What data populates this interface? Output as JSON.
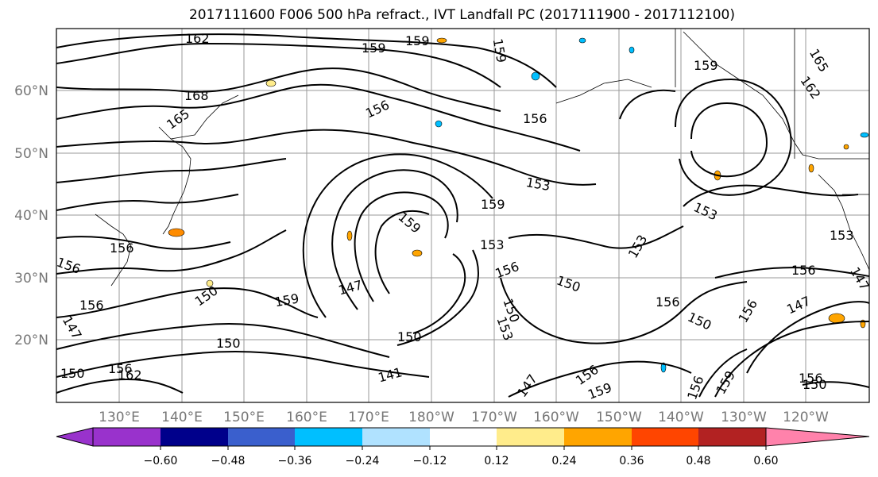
{
  "title": "2017111600 F006 500 hPa refract., IVT Landfall PC (2017111900 - 2017112100)",
  "map": {
    "lat_labels": [
      "60°N",
      "50°N",
      "40°N",
      "30°N",
      "20°N"
    ],
    "lon_labels": [
      "130°E",
      "140°E",
      "150°E",
      "160°E",
      "170°E",
      "180°W",
      "170°W",
      "160°W",
      "150°W",
      "140°W",
      "130°W",
      "120°W"
    ],
    "contour_labels": [
      "162",
      "159",
      "159",
      "159",
      "165",
      "168",
      "165",
      "156",
      "156",
      "159",
      "162",
      "153",
      "159",
      "159",
      "153",
      "153",
      "153",
      "153",
      "156",
      "156",
      "147",
      "150",
      "150",
      "156",
      "150",
      "159",
      "156",
      "150",
      "147",
      "153",
      "156",
      "162",
      "147",
      "156",
      "150",
      "156",
      "156",
      "147",
      "156",
      "150",
      "141",
      "150",
      "147",
      "159",
      "156",
      "156",
      "159",
      "150"
    ]
  },
  "colorbar": {
    "ticks": [
      "−0.60",
      "−0.48",
      "−0.36",
      "−0.24",
      "−0.12",
      "0.12",
      "0.24",
      "0.36",
      "0.48",
      "0.60"
    ],
    "colors": [
      "#9932cc",
      "#00008b",
      "#3a5fcd",
      "#00bfff",
      "#b0e2ff",
      "#ffffff",
      "#ffec8b",
      "#ffa500",
      "#ff4500",
      "#b22222",
      "#ff82ab"
    ]
  }
}
